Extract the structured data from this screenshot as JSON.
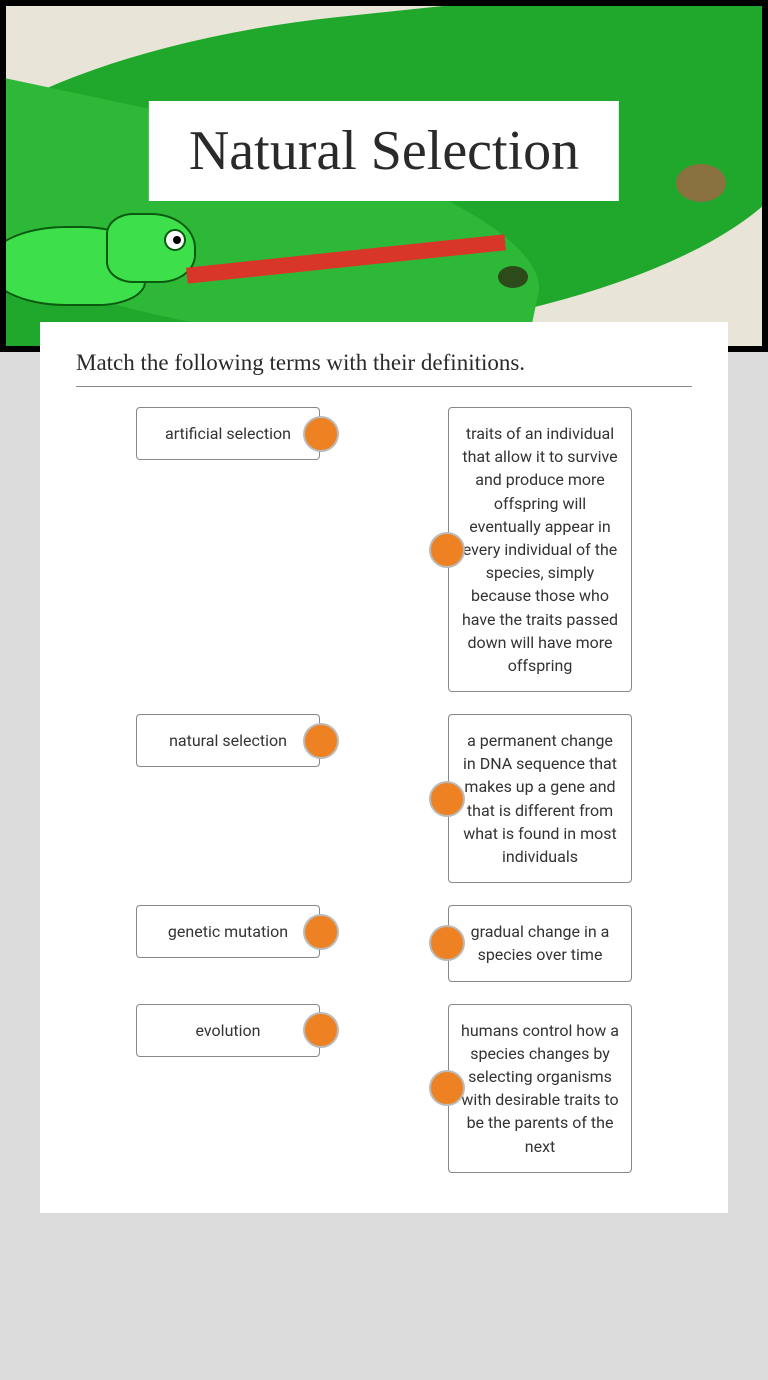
{
  "header": {
    "title": "Natural Selection",
    "background_color": "#e8e4d8",
    "leaf_color": "#1fa82b",
    "leaf2_color": "#2eb838",
    "chameleon_color": "#3de04a",
    "tongue_color": "#d9362a",
    "frame_color": "#000000"
  },
  "card": {
    "instruction": "Match the following terms with their definitions.",
    "instruction_fontsize": 23,
    "instruction_color": "#2a2a2a",
    "border_color": "#888888",
    "background": "#ffffff"
  },
  "connector": {
    "fill": "#ee8222",
    "border": "#bbbbbb",
    "size": 36
  },
  "item_style": {
    "border_color": "#888888",
    "border_radius": 4,
    "font_size": 16,
    "text_color": "#333333"
  },
  "pairs": [
    {
      "term": "artificial selection",
      "definition": "traits of an individual that allow it to survive and produce more offspring will eventually appear in every individual of the species, simply because those who have the traits passed down will have more offspring"
    },
    {
      "term": "natural selection",
      "definition": "a permanent change in DNA sequence that makes up a gene and that is different from what is found in most individuals"
    },
    {
      "term": "genetic mutation",
      "definition": "gradual change in a species over time"
    },
    {
      "term": "evolution",
      "definition": "humans control how a species changes by selecting organisms with desirable traits to be the parents of the next"
    }
  ]
}
